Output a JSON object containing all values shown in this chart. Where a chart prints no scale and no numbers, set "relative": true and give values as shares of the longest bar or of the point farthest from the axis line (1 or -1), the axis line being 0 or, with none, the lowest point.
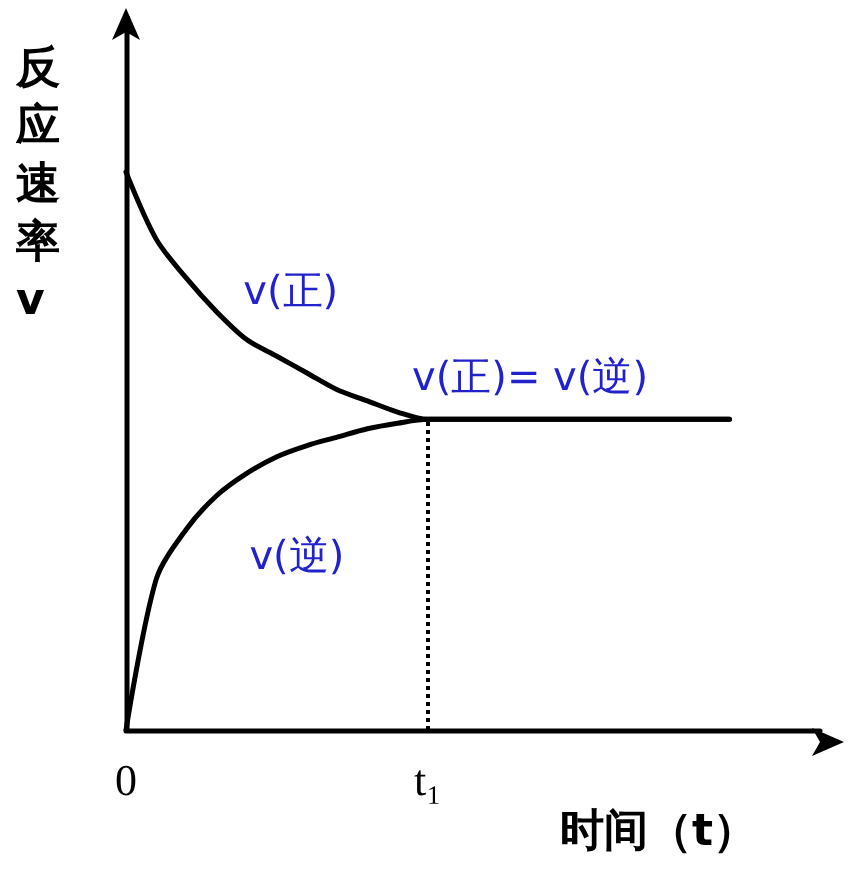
{
  "chart_data": {
    "type": "line",
    "relative": true,
    "xlabel": "时间（t）",
    "ylabel": "反应速率v",
    "legend": false,
    "grid": false,
    "marker": "none",
    "line_style": "solid",
    "tick_labels": "x",
    "categories": [
      "0",
      null,
      null,
      null,
      null,
      null,
      null,
      null,
      null,
      null,
      "t₁",
      null,
      null,
      null,
      null,
      null,
      null,
      null,
      null,
      null,
      null,
      null,
      null,
      null
    ],
    "series": [
      {
        "name": "v(正)",
        "color": "#000000",
        "values": [
          1,
          0.88,
          0.81,
          0.75,
          0.7,
          0.67,
          0.64,
          0.61,
          0.59,
          0.57,
          0.557,
          0.557,
          0.557,
          0.557,
          0.557,
          0.557,
          0.557,
          0.557,
          0.557,
          0.557,
          0.557,
          null,
          null,
          null
        ]
      },
      {
        "name": "v(逆)",
        "color": "#000000",
        "values": [
          0,
          0.27,
          0.36,
          0.42,
          0.46,
          0.49,
          0.51,
          0.525,
          0.54,
          0.55,
          0.557,
          0.557,
          0.557,
          0.557,
          0.557,
          0.557,
          0.557,
          0.557,
          0.557,
          0.557,
          0.557,
          null,
          null,
          null
        ]
      }
    ],
    "ref_lines": [
      {
        "axis": "x",
        "value": "t₁",
        "line_style": "dotted",
        "color": "#000000"
      }
    ],
    "annotations": [
      "v(正)= v(逆)"
    ]
  }
}
